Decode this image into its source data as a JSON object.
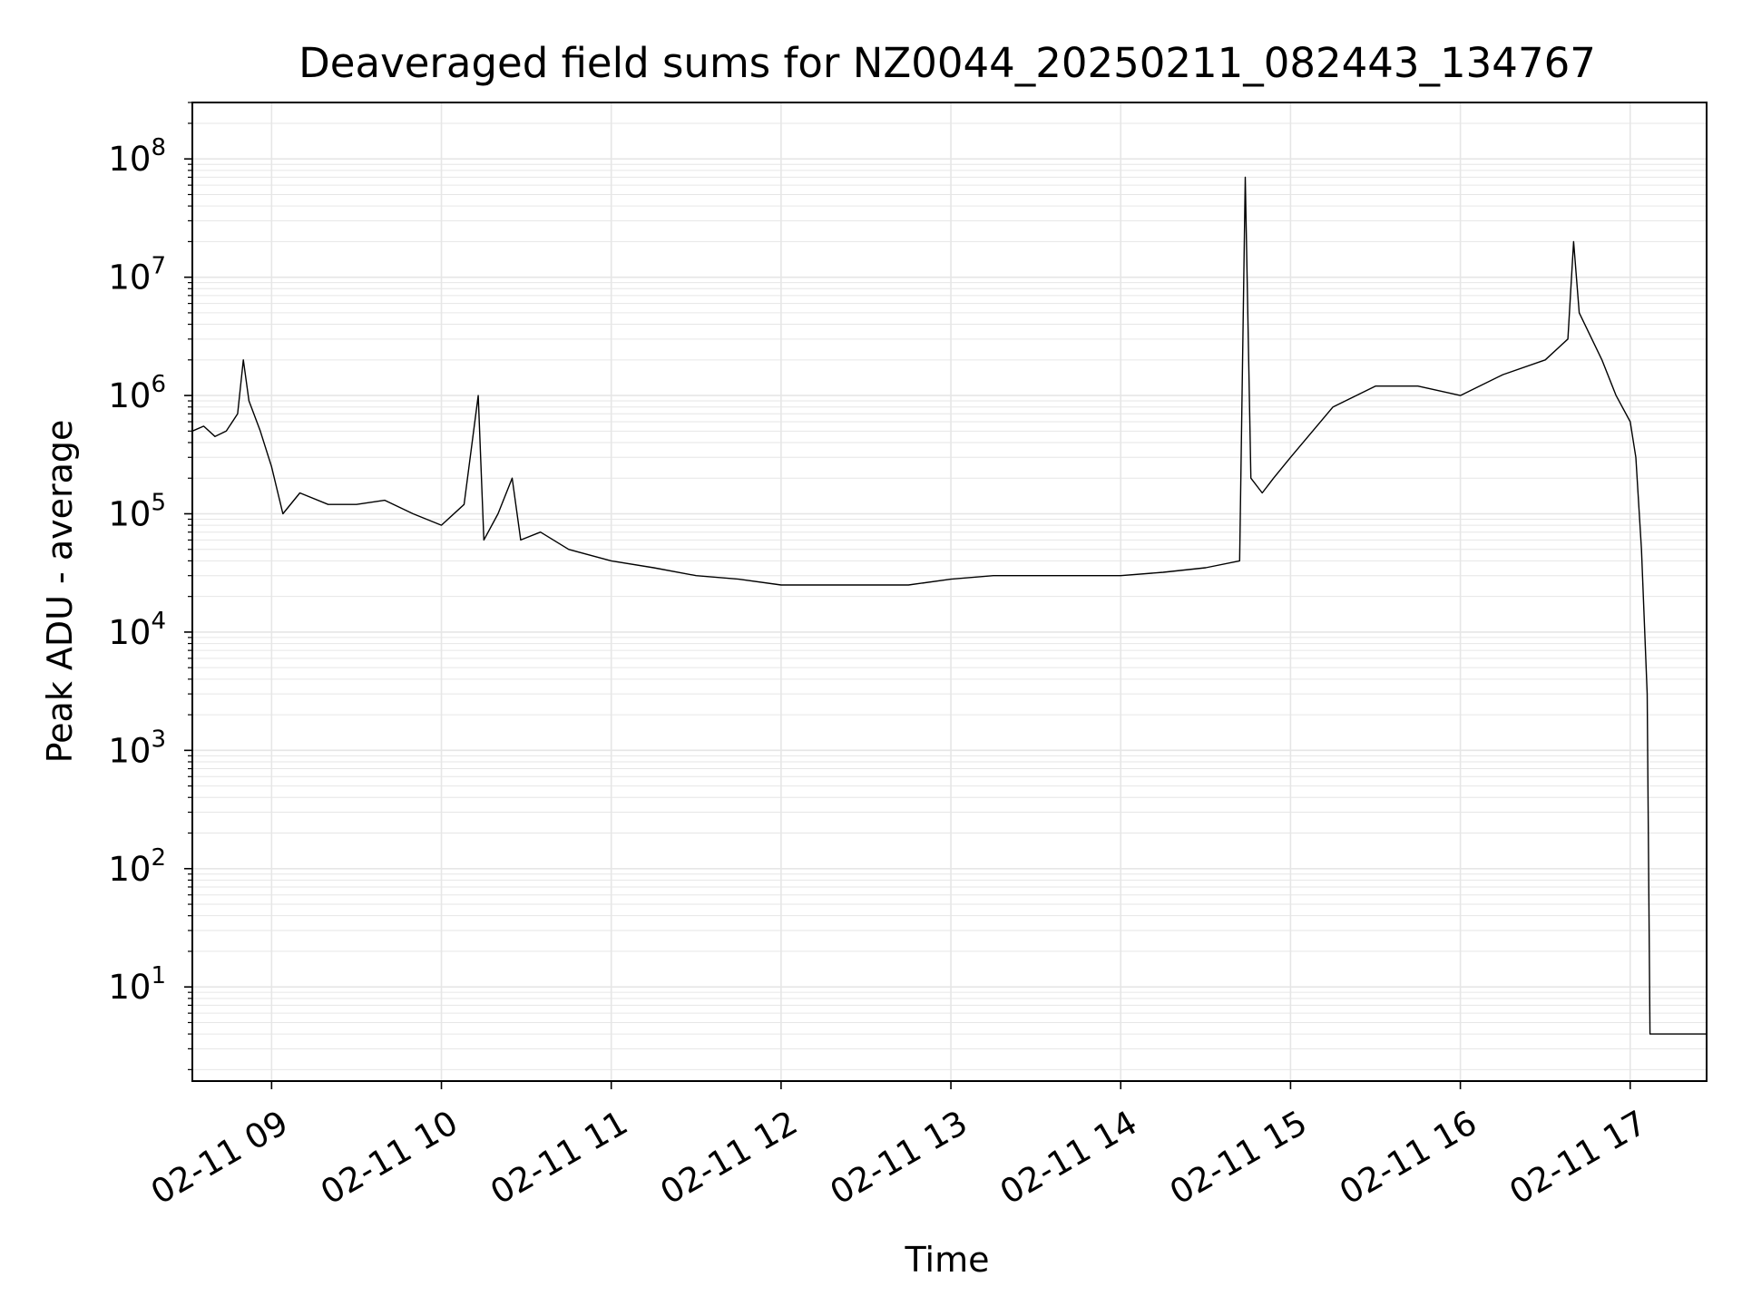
{
  "chart_data": {
    "type": "line",
    "title": "Deaveraged field sums for NZ0044_20250211_082443_134767",
    "xlabel": "Time",
    "ylabel": "Peak ADU - average",
    "yscale": "log",
    "ylim": [
      1.6,
      300000000
    ],
    "xlim": [
      "2025-02-11 08:32",
      "2025-02-11 17:27"
    ],
    "x_ticks": [
      "2025-02-11 09:00",
      "2025-02-11 10:00",
      "2025-02-11 11:00",
      "2025-02-11 12:00",
      "2025-02-11 13:00",
      "2025-02-11 14:00",
      "2025-02-11 15:00",
      "2025-02-11 16:00",
      "2025-02-11 17:00"
    ],
    "x_tick_labels": [
      "02-11 09",
      "02-11 10",
      "02-11 11",
      "02-11 12",
      "02-11 13",
      "02-11 14",
      "02-11 15",
      "02-11 16",
      "02-11 17"
    ],
    "y_ticks": [
      10,
      100,
      1000,
      10000,
      100000,
      1000000,
      10000000,
      100000000
    ],
    "y_tick_labels": [
      {
        "base": "10",
        "exp": "1"
      },
      {
        "base": "10",
        "exp": "2"
      },
      {
        "base": "10",
        "exp": "3"
      },
      {
        "base": "10",
        "exp": "4"
      },
      {
        "base": "10",
        "exp": "5"
      },
      {
        "base": "10",
        "exp": "6"
      },
      {
        "base": "10",
        "exp": "7"
      },
      {
        "base": "10",
        "exp": "8"
      }
    ],
    "grid": true,
    "line_color": "#000000",
    "grid_color": "#e6e6e6",
    "series": [
      {
        "x": [
          "2025-02-11 08:32",
          "2025-02-11 08:36",
          "2025-02-11 08:40",
          "2025-02-11 08:44",
          "2025-02-11 08:48",
          "2025-02-11 08:50",
          "2025-02-11 08:52",
          "2025-02-11 08:56",
          "2025-02-11 09:00",
          "2025-02-11 09:04",
          "2025-02-11 09:10",
          "2025-02-11 09:20",
          "2025-02-11 09:30",
          "2025-02-11 09:40",
          "2025-02-11 09:50",
          "2025-02-11 10:00",
          "2025-02-11 10:08",
          "2025-02-11 10:13",
          "2025-02-11 10:15",
          "2025-02-11 10:20",
          "2025-02-11 10:25",
          "2025-02-11 10:28",
          "2025-02-11 10:35",
          "2025-02-11 10:45",
          "2025-02-11 11:00",
          "2025-02-11 11:15",
          "2025-02-11 11:30",
          "2025-02-11 11:45",
          "2025-02-11 12:00",
          "2025-02-11 12:15",
          "2025-02-11 12:30",
          "2025-02-11 12:45",
          "2025-02-11 13:00",
          "2025-02-11 13:15",
          "2025-02-11 13:30",
          "2025-02-11 13:45",
          "2025-02-11 14:00",
          "2025-02-11 14:15",
          "2025-02-11 14:30",
          "2025-02-11 14:42",
          "2025-02-11 14:44",
          "2025-02-11 14:46",
          "2025-02-11 14:50",
          "2025-02-11 14:54",
          "2025-02-11 15:00",
          "2025-02-11 15:15",
          "2025-02-11 15:30",
          "2025-02-11 15:45",
          "2025-02-11 16:00",
          "2025-02-11 16:15",
          "2025-02-11 16:30",
          "2025-02-11 16:38",
          "2025-02-11 16:40",
          "2025-02-11 16:42",
          "2025-02-11 16:50",
          "2025-02-11 16:55",
          "2025-02-11 17:00",
          "2025-02-11 17:02",
          "2025-02-11 17:04",
          "2025-02-11 17:06",
          "2025-02-11 17:07",
          "2025-02-11 17:10",
          "2025-02-11 17:20",
          "2025-02-11 17:27"
        ],
        "y": [
          500000,
          550000,
          450000,
          500000,
          700000,
          2000000,
          900000,
          500000,
          250000,
          100000,
          150000,
          120000,
          120000,
          130000,
          100000,
          80000,
          120000,
          1000000,
          60000,
          100000,
          200000,
          60000,
          70000,
          50000,
          40000,
          35000,
          30000,
          28000,
          25000,
          25000,
          25000,
          25000,
          28000,
          30000,
          30000,
          30000,
          30000,
          32000,
          35000,
          40000,
          70000000,
          200000,
          150000,
          200000,
          300000,
          800000,
          1200000,
          1200000,
          1000000,
          1500000,
          2000000,
          3000000,
          20000000,
          5000000,
          2000000,
          1000000,
          600000,
          300000,
          50000,
          3000,
          4,
          4,
          4,
          4
        ]
      }
    ]
  }
}
